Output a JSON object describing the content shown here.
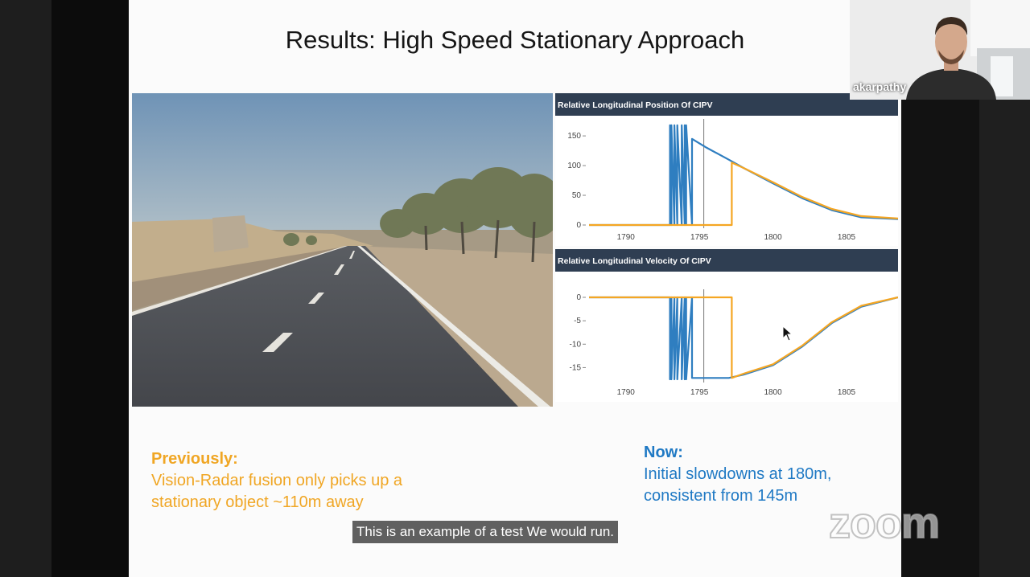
{
  "slide": {
    "title": "Results: High Speed Stationary Approach",
    "charts": [
      {
        "title": "Relative Longitudinal Position Of CIPV",
        "y_ticks": [
          "150",
          "100",
          "50",
          "0"
        ],
        "x_ticks": [
          "1790",
          "1795",
          "1800",
          "1805"
        ]
      },
      {
        "title": "Relative Longitudinal Velocity Of CIPV",
        "y_ticks": [
          "0",
          "-5",
          "-10",
          "-15"
        ],
        "x_ticks": [
          "1790",
          "1795",
          "1800",
          "1805"
        ]
      }
    ],
    "previously": {
      "label": "Previously:",
      "line1": "Vision-Radar fusion only picks up a",
      "line2": "stationary object ~110m away"
    },
    "now": {
      "label": "Now:",
      "line1": "Initial slowdowns at 180m,",
      "line2": "consistent from 145m"
    }
  },
  "chart_data": [
    {
      "type": "line",
      "title": "Relative Longitudinal Position Of CIPV",
      "xlim": [
        1787.5,
        1808.5
      ],
      "ylim": [
        0,
        165
      ],
      "x_ticks": [
        1790,
        1795,
        1800,
        1805
      ],
      "y_ticks": [
        0,
        50,
        100,
        150
      ],
      "cursor_x": 1795.3,
      "series": [
        {
          "color": "#2f7ec0",
          "x": [
            1787.5,
            1793.0,
            1793.0,
            1793.1,
            1793.1,
            1793.3,
            1793.3,
            1793.5,
            1793.5,
            1793.8,
            1793.8,
            1794.0,
            1794.0,
            1794.1,
            1794.1,
            1794.5,
            1794.5,
            1795.5,
            1797.0,
            1798.0,
            1800.0,
            1802.0,
            1804.0,
            1806.0,
            1808.5
          ],
          "y": [
            0,
            0,
            168,
            0,
            168,
            0,
            168,
            0,
            168,
            0,
            168,
            0,
            168,
            0,
            168,
            0,
            145,
            130,
            110,
            96,
            70,
            45,
            25,
            13,
            10
          ]
        },
        {
          "color": "#f5a623",
          "x": [
            1787.5,
            1797.2,
            1797.2,
            1798.0,
            1800.0,
            1802.0,
            1804.0,
            1806.0,
            1808.5
          ],
          "y": [
            0,
            0,
            105,
            96,
            72,
            47,
            27,
            15,
            11
          ]
        }
      ]
    },
    {
      "type": "line",
      "title": "Relative Longitudinal Velocity Of CIPV",
      "xlim": [
        1787.5,
        1808.5
      ],
      "ylim": [
        -17.5,
        0
      ],
      "x_ticks": [
        1790,
        1795,
        1800,
        1805
      ],
      "y_ticks": [
        0,
        -5,
        -10,
        -15
      ],
      "cursor_x": 1795.3,
      "series": [
        {
          "color": "#2f7ec0",
          "x": [
            1787.5,
            1793.0,
            1793.0,
            1793.1,
            1793.1,
            1793.3,
            1793.3,
            1793.5,
            1793.5,
            1793.8,
            1793.8,
            1794.0,
            1794.0,
            1794.1,
            1794.1,
            1794.5,
            1794.5,
            1797.0,
            1798.0,
            1800.0,
            1802.0,
            1804.0,
            1806.0,
            1808.5
          ],
          "y": [
            0,
            0,
            -17.5,
            0,
            -17.5,
            0,
            -17.5,
            0,
            -17.5,
            0,
            -17.5,
            0,
            -17.5,
            0,
            -17.5,
            0,
            -17.2,
            -17.2,
            -16.5,
            -14.5,
            -10.5,
            -5.5,
            -2,
            0
          ]
        },
        {
          "color": "#f5a623",
          "x": [
            1787.5,
            1797.2,
            1797.2,
            1798.0,
            1800.0,
            1802.0,
            1804.0,
            1806.0,
            1808.5
          ],
          "y": [
            0,
            0,
            -17.2,
            -16.3,
            -14.3,
            -10.3,
            -5.3,
            -1.8,
            0
          ]
        }
      ]
    }
  ],
  "caption": "This is an example of a test We would run.",
  "zoom_logo": "zoom",
  "participant": {
    "name": "akarpathy"
  },
  "colors": {
    "previously": "#f0a624",
    "now": "#1f79c4",
    "chart_header": "#2f3e52",
    "series_blue": "#2f7ec0",
    "series_orange": "#f5a623"
  }
}
